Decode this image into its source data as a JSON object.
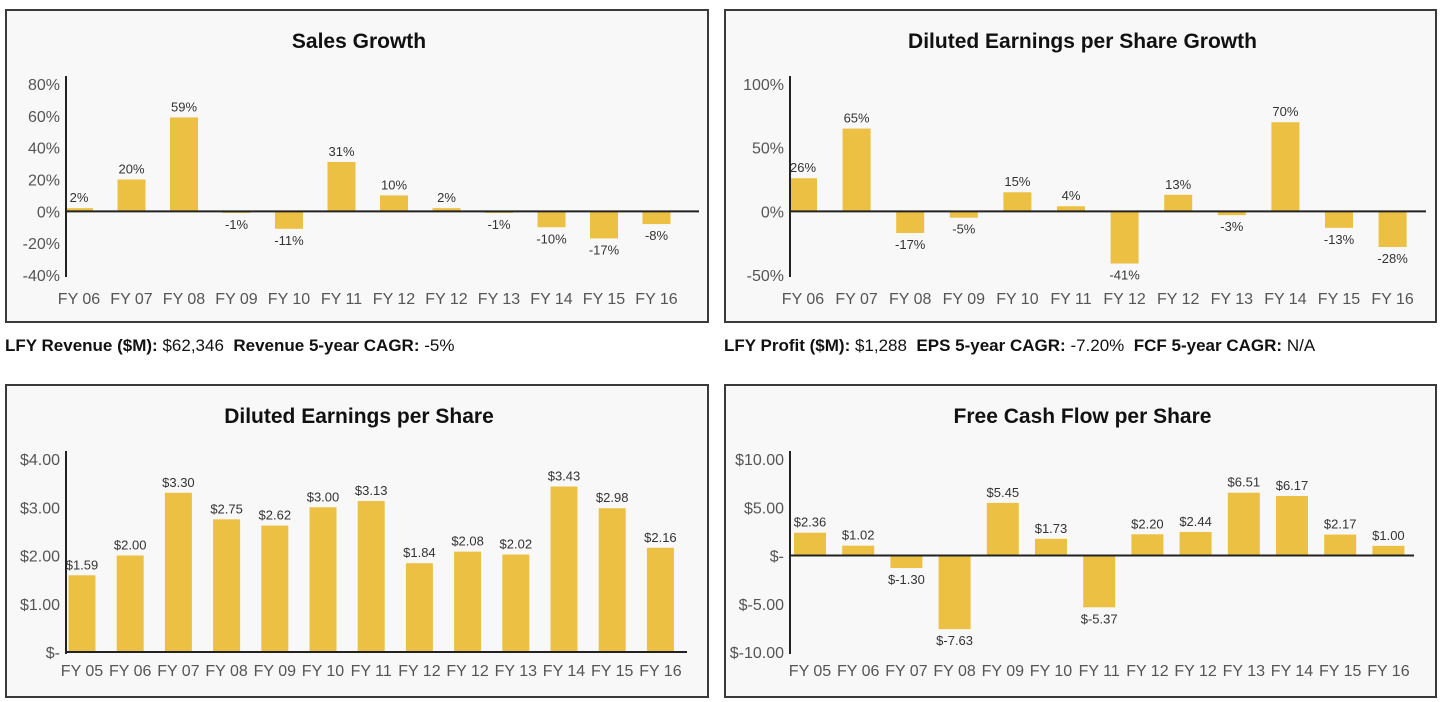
{
  "colors": {
    "bar": "#ecc143",
    "axis": "#222222",
    "panel_bg": "#f8f8f8"
  },
  "chart_data": [
    {
      "type": "bar",
      "title": "Sales Growth",
      "categories": [
        "FY 06",
        "FY 07",
        "FY 08",
        "FY 09",
        "FY 10",
        "FY 11",
        "FY 12",
        "FY 12",
        "FY 13",
        "FY 14",
        "FY 15",
        "FY 16"
      ],
      "values": [
        2,
        20,
        59,
        -1,
        -11,
        31,
        10,
        2,
        -1,
        -10,
        -17,
        -8
      ],
      "labels": [
        "2%",
        "20%",
        "59%",
        "-1%",
        "-11%",
        "31%",
        "10%",
        "2%",
        "-1%",
        "-10%",
        "-17%",
        "-8%"
      ],
      "yticks": [
        80,
        60,
        40,
        20,
        0,
        -20,
        -40
      ],
      "ytick_labels": [
        "80%",
        "60%",
        "40%",
        "20%",
        "0%",
        "-20%",
        "-40%"
      ],
      "ylim": [
        -40,
        80
      ],
      "grid": false
    },
    {
      "type": "bar",
      "title": "Diluted Earnings per Share Growth",
      "categories": [
        "FY 06",
        "FY 07",
        "FY 08",
        "FY 09",
        "FY 10",
        "FY 11",
        "FY 12",
        "FY 12",
        "FY 13",
        "FY 14",
        "FY 15",
        "FY 16"
      ],
      "values": [
        26,
        65,
        -17,
        -5,
        15,
        4,
        -41,
        13,
        -3,
        70,
        -13,
        -28
      ],
      "labels": [
        "26%",
        "65%",
        "-17%",
        "-5%",
        "15%",
        "4%",
        "-41%",
        "13%",
        "-3%",
        "70%",
        "-13%",
        "-28%"
      ],
      "yticks": [
        100,
        50,
        0,
        -50
      ],
      "ytick_labels": [
        "100%",
        "50%",
        "0%",
        "-50%"
      ],
      "ylim": [
        -50,
        100
      ],
      "grid": false
    },
    {
      "type": "bar",
      "title": "Diluted Earnings per Share",
      "categories": [
        "FY 05",
        "FY 06",
        "FY 07",
        "FY 08",
        "FY 09",
        "FY 10",
        "FY 11",
        "FY 12",
        "FY 12",
        "FY 13",
        "FY 14",
        "FY 15",
        "FY 16"
      ],
      "values": [
        1.59,
        2.0,
        3.3,
        2.75,
        2.62,
        3.0,
        3.13,
        1.84,
        2.08,
        2.02,
        3.43,
        2.98,
        2.16
      ],
      "labels": [
        "$1.59",
        "$2.00",
        "$3.30",
        "$2.75",
        "$2.62",
        "$3.00",
        "$3.13",
        "$1.84",
        "$2.08",
        "$2.02",
        "$3.43",
        "$2.98",
        "$2.16"
      ],
      "yticks": [
        4,
        3,
        2,
        1,
        0
      ],
      "ytick_labels": [
        "$4.00",
        "$3.00",
        "$2.00",
        "$1.00",
        "$-"
      ],
      "ylim": [
        0,
        4
      ],
      "grid": false
    },
    {
      "type": "bar",
      "title": "Free Cash Flow per Share",
      "categories": [
        "FY 05",
        "FY 06",
        "FY 07",
        "FY 08",
        "FY 09",
        "FY 10",
        "FY 11",
        "FY 12",
        "FY 12",
        "FY 13",
        "FY 14",
        "FY 15",
        "FY 16"
      ],
      "values": [
        2.36,
        1.02,
        -1.3,
        -7.63,
        5.45,
        1.73,
        -5.37,
        2.2,
        2.44,
        6.51,
        6.17,
        2.17,
        1.0
      ],
      "labels": [
        "$2.36",
        "$1.02",
        "$-1.30",
        "$-7.63",
        "$5.45",
        "$1.73",
        "$-5.37",
        "$2.20",
        "$2.44",
        "$6.51",
        "$6.17",
        "$2.17",
        "$1.00"
      ],
      "yticks": [
        10,
        5,
        0,
        -5,
        -10
      ],
      "ytick_labels": [
        "$10.00",
        "$5.00",
        "$-",
        "$-5.00",
        "$-10.00"
      ],
      "ylim": [
        -10,
        10
      ],
      "grid": false
    }
  ],
  "info_left": [
    {
      "label": "LFY Revenue ($M):",
      "value": "$62,346"
    },
    {
      "label": "Revenue 5-year CAGR:",
      "value": "-5%"
    }
  ],
  "info_right": [
    {
      "label": "LFY Profit ($M):",
      "value": "$1,288"
    },
    {
      "label": "EPS 5-year CAGR:",
      "value": "-7.20%"
    },
    {
      "label": "FCF 5-year CAGR:",
      "value": "N/A"
    }
  ]
}
